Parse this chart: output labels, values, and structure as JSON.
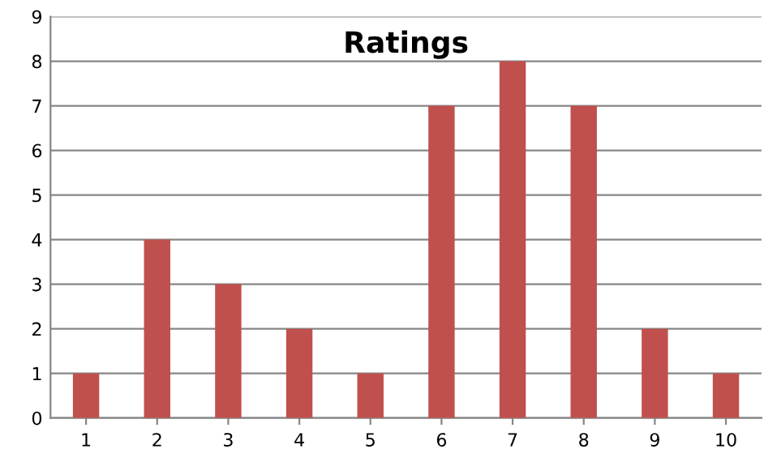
{
  "chart_data": {
    "type": "bar",
    "title": "Ratings",
    "categories": [
      "1",
      "2",
      "3",
      "4",
      "5",
      "6",
      "7",
      "8",
      "9",
      "10"
    ],
    "values": [
      1,
      4,
      3,
      2,
      1,
      7,
      8,
      7,
      2,
      1
    ],
    "color": "#c0504d",
    "ylim": [
      0,
      9
    ],
    "yticks": [
      0,
      1,
      2,
      3,
      4,
      5,
      6,
      7,
      8,
      9
    ],
    "grid": "y",
    "legend": false
  }
}
